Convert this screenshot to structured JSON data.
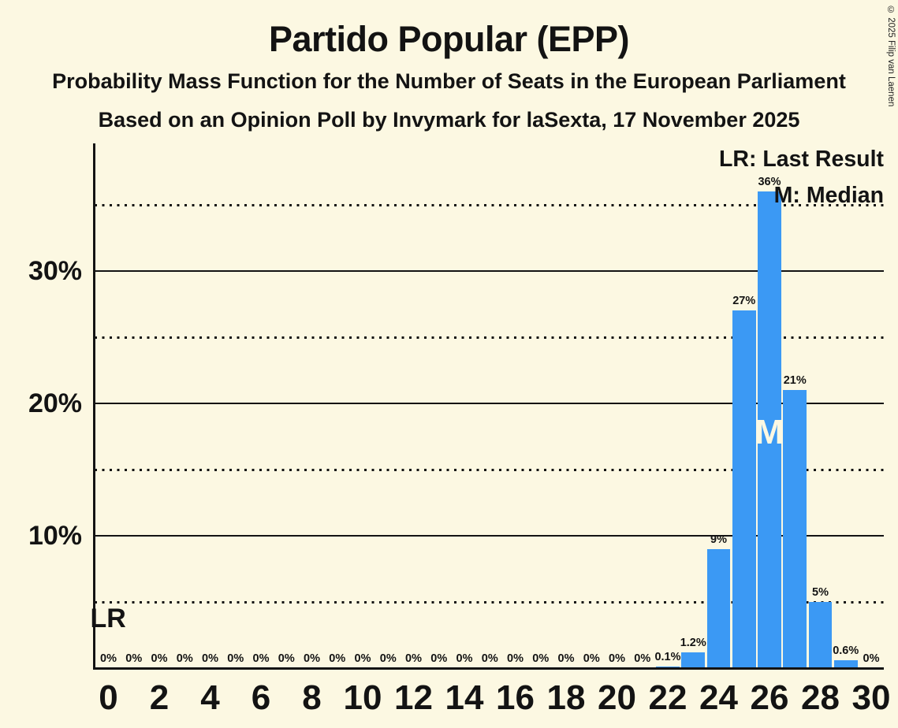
{
  "page": {
    "title": "Partido Popular (EPP)",
    "subtitle": "Probability Mass Function for the Number of Seats in the European Parliament",
    "subsubtitle": "Based on an Opinion Poll by Invymark for laSexta, 17 November 2025",
    "copyright": "© 2025 Filip van Laenen"
  },
  "legend": {
    "lr_label": "LR: Last Result",
    "m_label": "M: Median"
  },
  "annotations": {
    "lr_marker": "LR",
    "median_marker": "M",
    "median_seat": 26
  },
  "axes": {
    "y_solid_ticks": [
      {
        "pct": 10,
        "label": "10%"
      },
      {
        "pct": 20,
        "label": "20%"
      },
      {
        "pct": 30,
        "label": "30%"
      }
    ],
    "y_dotted_pcts": [
      5,
      15,
      25,
      35
    ],
    "x_tick_labels": [
      "0",
      "2",
      "4",
      "6",
      "8",
      "10",
      "12",
      "14",
      "16",
      "18",
      "20",
      "22",
      "24",
      "26",
      "28",
      "30"
    ]
  },
  "colors": {
    "background": "#FCF8E2",
    "bar": "#3B99F4",
    "text": "#131313",
    "median_letter": "#FCF8E2"
  },
  "chart_data": {
    "type": "bar",
    "title": "Partido Popular (EPP)",
    "subtitle": "Probability Mass Function for the Number of Seats in the European Parliament",
    "source_line": "Based on an Opinion Poll by Invymark for laSexta, 17 November 2025",
    "x": [
      0,
      1,
      2,
      3,
      4,
      5,
      6,
      7,
      8,
      9,
      10,
      11,
      12,
      13,
      14,
      15,
      16,
      17,
      18,
      19,
      20,
      21,
      22,
      23,
      24,
      25,
      26,
      27,
      28,
      29,
      30
    ],
    "values": [
      0,
      0,
      0,
      0,
      0,
      0,
      0,
      0,
      0,
      0,
      0,
      0,
      0,
      0,
      0,
      0,
      0,
      0,
      0,
      0,
      0,
      0,
      0.1,
      1.2,
      9,
      27,
      36,
      21,
      5,
      0.6,
      0
    ],
    "value_labels": [
      "0%",
      "0%",
      "0%",
      "0%",
      "0%",
      "0%",
      "0%",
      "0%",
      "0%",
      "0%",
      "0%",
      "0%",
      "0%",
      "0%",
      "0%",
      "0%",
      "0%",
      "0%",
      "0%",
      "0%",
      "0%",
      "0%",
      "0.1%",
      "1.2%",
      "9%",
      "27%",
      "36%",
      "21%",
      "5%",
      "0.6%",
      "0%"
    ],
    "xlabel": "",
    "ylabel": "",
    "ylim": [
      0,
      37.5
    ],
    "x_tick_step": 2,
    "gridlines": {
      "solid_pct_step": 10,
      "dotted_pct_step": 5
    },
    "legend_position": "top-right",
    "median_seat": 26
  }
}
